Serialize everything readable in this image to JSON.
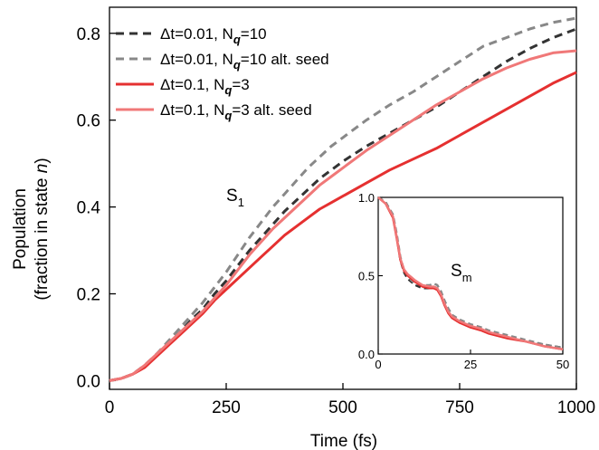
{
  "chart_data": [
    {
      "type": "line",
      "xlabel": "Time (fs)",
      "ylabel_line1": "Population",
      "ylabel_line2_prefix": "(fraction in state ",
      "ylabel_line2_var": "n",
      "ylabel_line2_suffix": ")",
      "xlim": [
        0,
        1000
      ],
      "ylim": [
        -0.02,
        0.86
      ],
      "xticks": [
        0,
        250,
        500,
        750,
        1000
      ],
      "xtick_labels": [
        "0",
        "250",
        "500",
        "750",
        "1000"
      ],
      "yticks": [
        0.0,
        0.2,
        0.4,
        0.6,
        0.8
      ],
      "ytick_labels": [
        "0.0",
        "0.2",
        "0.4",
        "0.6",
        "0.8"
      ],
      "annotation": {
        "main": "S",
        "sub": "1"
      },
      "legend_position": "top-left",
      "series": [
        {
          "legend": {
            "a": "Δt=0.01, N",
            "sub": "q",
            "b": "=10"
          },
          "color": "#333333",
          "dash": true,
          "x": [
            0,
            25,
            50,
            75,
            100,
            125,
            150,
            175,
            200,
            225,
            250,
            275,
            300,
            325,
            350,
            375,
            400,
            425,
            450,
            475,
            500,
            550,
            600,
            650,
            700,
            750,
            800,
            850,
            900,
            950,
            1000
          ],
          "y": [
            0.0,
            0.005,
            0.015,
            0.035,
            0.06,
            0.085,
            0.11,
            0.14,
            0.165,
            0.2,
            0.23,
            0.265,
            0.3,
            0.33,
            0.36,
            0.39,
            0.415,
            0.44,
            0.465,
            0.485,
            0.505,
            0.54,
            0.57,
            0.6,
            0.63,
            0.665,
            0.7,
            0.735,
            0.765,
            0.79,
            0.81
          ]
        },
        {
          "legend": {
            "a": "Δt=0.01, N",
            "sub": "q",
            "b": "=10 alt. seed"
          },
          "color": "#888888",
          "dash": true,
          "x": [
            0,
            25,
            50,
            75,
            100,
            125,
            150,
            175,
            200,
            225,
            250,
            275,
            300,
            325,
            350,
            375,
            400,
            425,
            450,
            475,
            500,
            550,
            600,
            650,
            700,
            750,
            800,
            850,
            900,
            950,
            1000
          ],
          "y": [
            0.0,
            0.005,
            0.015,
            0.035,
            0.06,
            0.09,
            0.12,
            0.15,
            0.18,
            0.215,
            0.25,
            0.29,
            0.33,
            0.365,
            0.4,
            0.43,
            0.46,
            0.49,
            0.515,
            0.54,
            0.56,
            0.6,
            0.635,
            0.665,
            0.7,
            0.735,
            0.77,
            0.79,
            0.81,
            0.825,
            0.835
          ]
        },
        {
          "legend": {
            "a": "Δt=0.1, N",
            "sub": "q",
            "b": "=3"
          },
          "color": "#e53030",
          "dash": false,
          "x": [
            0,
            25,
            50,
            75,
            100,
            125,
            150,
            175,
            200,
            225,
            250,
            275,
            300,
            325,
            350,
            375,
            400,
            425,
            450,
            475,
            500,
            550,
            600,
            650,
            700,
            750,
            800,
            850,
            900,
            950,
            1000
          ],
          "y": [
            0.0,
            0.005,
            0.015,
            0.03,
            0.055,
            0.08,
            0.105,
            0.13,
            0.155,
            0.185,
            0.21,
            0.235,
            0.26,
            0.285,
            0.31,
            0.335,
            0.355,
            0.375,
            0.395,
            0.41,
            0.425,
            0.455,
            0.485,
            0.51,
            0.535,
            0.565,
            0.595,
            0.625,
            0.655,
            0.685,
            0.71
          ]
        },
        {
          "legend": {
            "a": "Δt=0.1, N",
            "sub": "q",
            "b": "=3 alt. seed"
          },
          "color": "#f07878",
          "dash": false,
          "x": [
            0,
            25,
            50,
            75,
            100,
            125,
            150,
            175,
            200,
            225,
            250,
            275,
            300,
            325,
            350,
            375,
            400,
            425,
            450,
            475,
            500,
            550,
            600,
            650,
            700,
            750,
            800,
            850,
            900,
            950,
            1000
          ],
          "y": [
            0.0,
            0.005,
            0.015,
            0.035,
            0.06,
            0.085,
            0.11,
            0.135,
            0.16,
            0.19,
            0.22,
            0.255,
            0.29,
            0.32,
            0.35,
            0.375,
            0.4,
            0.425,
            0.45,
            0.47,
            0.49,
            0.53,
            0.565,
            0.6,
            0.635,
            0.665,
            0.695,
            0.72,
            0.74,
            0.755,
            0.76
          ]
        }
      ]
    },
    {
      "type": "line",
      "inset": true,
      "xlim": [
        0,
        50
      ],
      "ylim": [
        0,
        1
      ],
      "xticks": [
        0,
        25,
        50
      ],
      "xtick_labels": [
        "0",
        "25",
        "50"
      ],
      "yticks": [
        0.0,
        0.5,
        1.0
      ],
      "ytick_labels": [
        "0.0",
        "0.5",
        "1.0"
      ],
      "annotation": {
        "main": "S",
        "sub": "m"
      },
      "series": [
        {
          "color": "#333333",
          "dash": true,
          "x": [
            0,
            2,
            4,
            5,
            6,
            7,
            8,
            9,
            10,
            12,
            14,
            15,
            16,
            17,
            18,
            19,
            20,
            22,
            25,
            28,
            30,
            35,
            40,
            45,
            50
          ],
          "y": [
            1.0,
            0.97,
            0.88,
            0.76,
            0.6,
            0.52,
            0.48,
            0.46,
            0.44,
            0.42,
            0.42,
            0.43,
            0.42,
            0.38,
            0.32,
            0.27,
            0.24,
            0.21,
            0.18,
            0.16,
            0.14,
            0.11,
            0.08,
            0.06,
            0.04
          ]
        },
        {
          "color": "#888888",
          "dash": true,
          "x": [
            0,
            2,
            4,
            5,
            6,
            7,
            8,
            9,
            10,
            12,
            14,
            15,
            16,
            17,
            18,
            19,
            20,
            22,
            25,
            28,
            30,
            35,
            40,
            45,
            50
          ],
          "y": [
            1.0,
            0.97,
            0.89,
            0.77,
            0.62,
            0.53,
            0.5,
            0.47,
            0.45,
            0.44,
            0.44,
            0.45,
            0.44,
            0.4,
            0.34,
            0.29,
            0.25,
            0.22,
            0.19,
            0.17,
            0.15,
            0.12,
            0.09,
            0.06,
            0.04
          ]
        },
        {
          "color": "#e53030",
          "dash": false,
          "x": [
            0,
            2,
            4,
            5,
            6,
            7,
            8,
            9,
            10,
            12,
            14,
            15,
            16,
            17,
            18,
            19,
            20,
            22,
            25,
            28,
            30,
            35,
            40,
            45,
            50
          ],
          "y": [
            1.0,
            0.96,
            0.87,
            0.74,
            0.6,
            0.53,
            0.5,
            0.48,
            0.46,
            0.43,
            0.42,
            0.42,
            0.41,
            0.37,
            0.31,
            0.26,
            0.23,
            0.2,
            0.17,
            0.15,
            0.13,
            0.1,
            0.08,
            0.05,
            0.03
          ]
        },
        {
          "color": "#f07878",
          "dash": false,
          "x": [
            0,
            2,
            4,
            5,
            6,
            7,
            8,
            9,
            10,
            12,
            14,
            15,
            16,
            17,
            18,
            19,
            20,
            22,
            25,
            28,
            30,
            35,
            40,
            45,
            50
          ],
          "y": [
            1.0,
            0.96,
            0.88,
            0.75,
            0.61,
            0.54,
            0.51,
            0.49,
            0.47,
            0.44,
            0.43,
            0.43,
            0.42,
            0.38,
            0.32,
            0.27,
            0.24,
            0.21,
            0.18,
            0.16,
            0.14,
            0.11,
            0.08,
            0.05,
            0.03
          ]
        }
      ]
    }
  ]
}
